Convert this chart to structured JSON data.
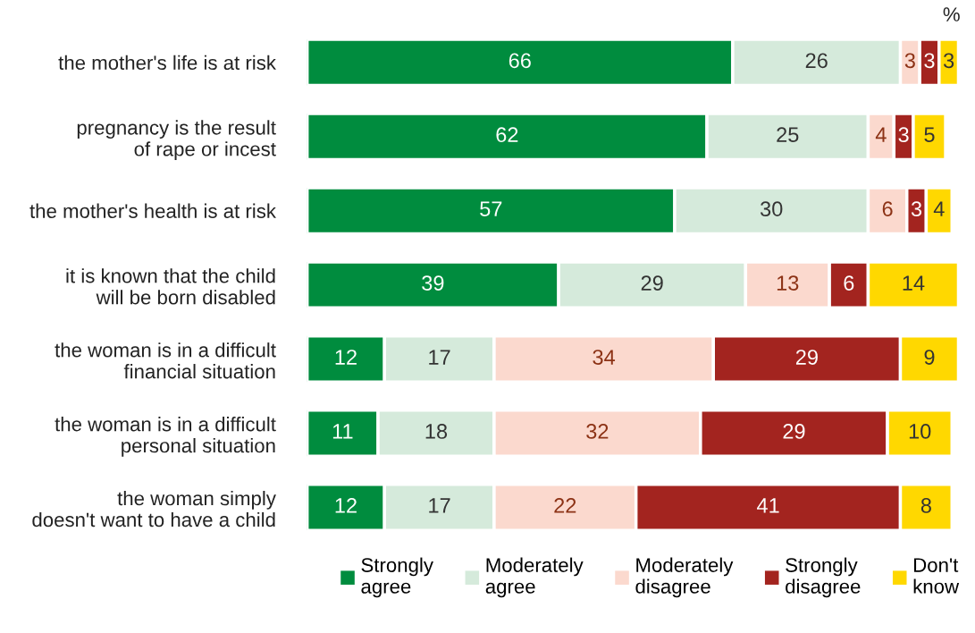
{
  "chart_data": {
    "type": "bar",
    "orientation": "horizontal",
    "stacked": true,
    "data_labels": true,
    "grid": false,
    "legend": "bottom",
    "tick_labels": "y",
    "categories": [
      "the mother's life is at risk",
      "pregnancy is the result\nof rape or incest",
      "the mother's health is at risk",
      "it is known that the child\nwill be born disabled",
      "the woman is in a difficult\nfinancial situation",
      "the woman is in a difficult\npersonal situation",
      "the woman simply\ndoesn't want to have a child"
    ],
    "series": [
      {
        "name": "Strongly\nagree",
        "color": "#008c3e",
        "values": [
          66,
          62,
          57,
          39,
          12,
          11,
          12
        ]
      },
      {
        "name": "Moderately\nagree",
        "color": "#d5eadb",
        "values": [
          26,
          25,
          30,
          29,
          17,
          18,
          17
        ]
      },
      {
        "name": "Moderately\ndisagree",
        "color": "#fbd9ce",
        "values": [
          3,
          4,
          6,
          13,
          34,
          32,
          22
        ]
      },
      {
        "name": "Strongly\ndisagree",
        "color": "#a3241f",
        "values": [
          3,
          3,
          3,
          6,
          29,
          29,
          41
        ]
      },
      {
        "name": "Don't\nknow",
        "color": "#ffd800",
        "values": [
          3,
          5,
          4,
          14,
          9,
          10,
          8
        ]
      }
    ],
    "annotations": [
      "%"
    ]
  }
}
